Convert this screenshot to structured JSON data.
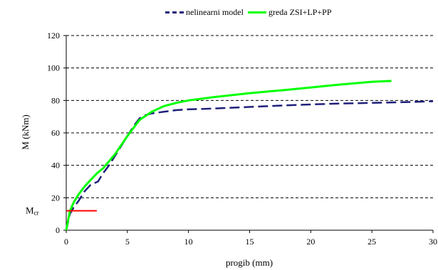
{
  "chart_data": {
    "type": "line",
    "xlabel": "progib (mm)",
    "ylabel": "M (kNm)",
    "xlim": [
      0,
      30
    ],
    "ylim": [
      0,
      120
    ],
    "x_ticks": [
      0,
      5,
      10,
      15,
      20,
      25,
      30
    ],
    "y_ticks": [
      0,
      20,
      40,
      60,
      80,
      100,
      120
    ],
    "grid": "horizontal dashed",
    "legend_position": "top",
    "annotation": {
      "label": "Mcr",
      "label_main": "M",
      "label_sub": "cr",
      "y": 12,
      "x_range": [
        0,
        2.5
      ],
      "color": "#ff0000"
    },
    "series": [
      {
        "name": "nelinearni model",
        "color": "#1f1f7a",
        "style": "dashed",
        "x": [
          0,
          0.3,
          0.6,
          1.0,
          1.5,
          2.0,
          2.6,
          3.0,
          3.5,
          4.0,
          4.5,
          5.0,
          5.5,
          6.0,
          6.5,
          7.0,
          8.0,
          9.0,
          10.0,
          12.0,
          15.0,
          18.0,
          20.0,
          22.0,
          25.0,
          28.0,
          30.0
        ],
        "y": [
          0,
          10,
          14,
          18,
          24,
          28,
          30,
          35,
          40,
          46,
          52,
          58,
          64,
          69,
          71,
          72,
          73,
          74,
          74.5,
          75,
          76,
          77,
          77.5,
          78,
          78.5,
          79,
          79.5
        ]
      },
      {
        "name": "greda ZSI+LP+PP",
        "color": "#00ff00",
        "style": "solid",
        "x": [
          0,
          0.3,
          0.6,
          1.0,
          1.5,
          2.0,
          2.5,
          3.0,
          4.0,
          5.0,
          6.0,
          7.0,
          8.0,
          9.0,
          10.0,
          12.0,
          15.0,
          18.0,
          20.0,
          22.0,
          25.0,
          26.6
        ],
        "y": [
          0,
          12,
          17,
          22,
          27,
          31,
          35,
          38,
          47,
          58,
          68,
          73,
          76.5,
          78.5,
          80,
          82,
          84.5,
          86.5,
          88,
          89.5,
          91.5,
          92
        ]
      }
    ]
  }
}
